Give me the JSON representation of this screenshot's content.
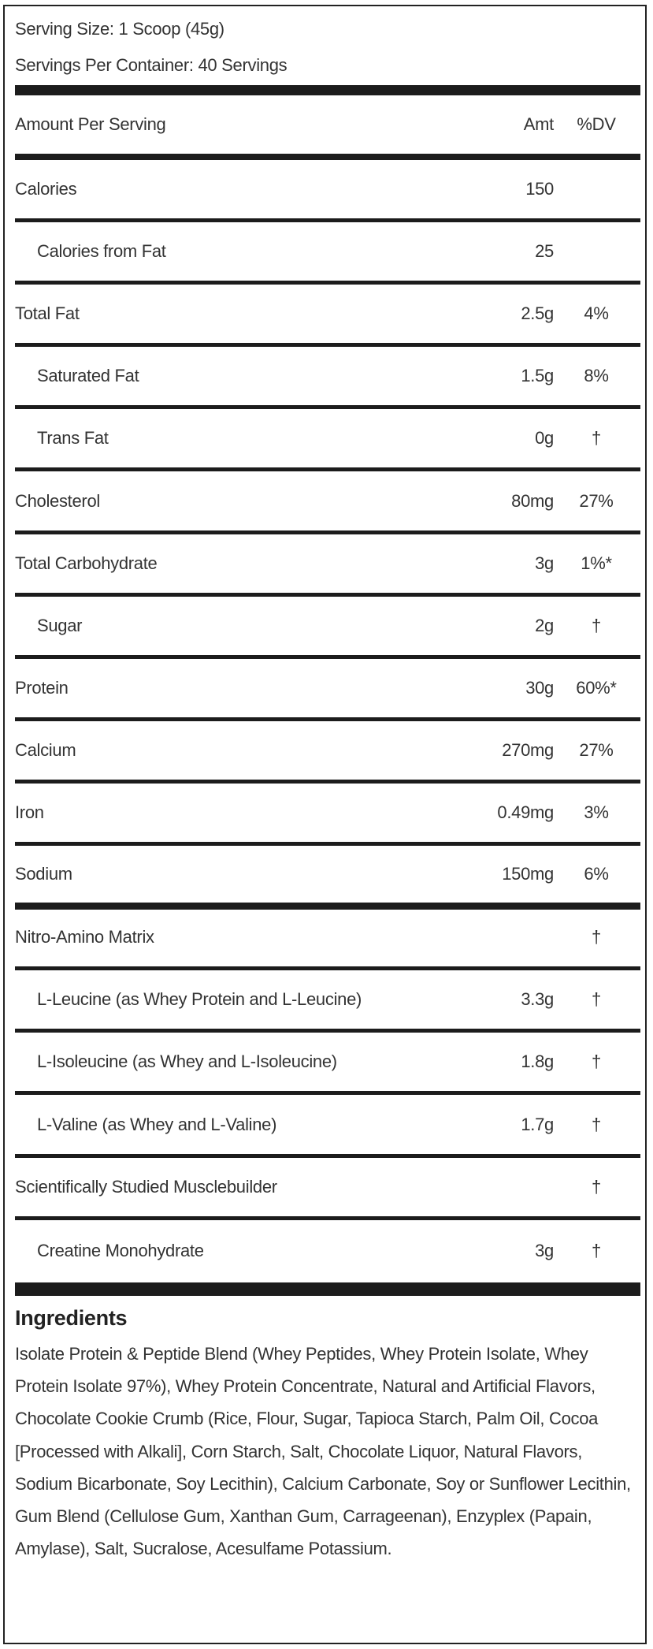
{
  "serving_size": "Serving Size: 1 Scoop (45g)",
  "servings_per_container": "Servings Per Container: 40 Servings",
  "header": {
    "label": "Amount Per Serving",
    "amt": "Amt",
    "dv": "%DV"
  },
  "rows": [
    {
      "label": "Calories",
      "amt": "150",
      "dv": ""
    },
    {
      "label": "Calories from Fat",
      "amt": "25",
      "dv": "",
      "indent": true
    },
    {
      "label": "Total Fat",
      "amt": "2.5g",
      "dv": "4%"
    },
    {
      "label": "Saturated Fat",
      "amt": "1.5g",
      "dv": "8%",
      "indent": true
    },
    {
      "label": "Trans Fat",
      "amt": "0g",
      "dv": "†",
      "indent": true
    },
    {
      "label": "Cholesterol",
      "amt": "80mg",
      "dv": "27%"
    },
    {
      "label": "Total Carbohydrate",
      "amt": "3g",
      "dv": "1%*"
    },
    {
      "label": "Sugar",
      "amt": "2g",
      "dv": "†",
      "indent": true
    },
    {
      "label": "Protein",
      "amt": "30g",
      "dv": "60%*"
    },
    {
      "label": "Calcium",
      "amt": "270mg",
      "dv": "27%"
    },
    {
      "label": "Iron",
      "amt": "0.49mg",
      "dv": "3%"
    },
    {
      "label": "Sodium",
      "amt": "150mg",
      "dv": "6%"
    },
    {
      "label": "Nitro-Amino Matrix",
      "amt": "",
      "dv": "†"
    },
    {
      "label": "L-Leucine (as Whey Protein and L-Leucine)",
      "amt": "3.3g",
      "dv": "†",
      "indent": true
    },
    {
      "label": "L-Isoleucine (as Whey and L-Isoleucine)",
      "amt": "1.8g",
      "dv": "†",
      "indent": true
    },
    {
      "label": "L-Valine (as Whey and L-Valine)",
      "amt": "1.7g",
      "dv": "†",
      "indent": true
    },
    {
      "label": "Scientifically Studied Musclebuilder",
      "amt": "",
      "dv": "†"
    },
    {
      "label": "Creatine Monohydrate",
      "amt": "3g",
      "dv": "†",
      "indent": true
    }
  ],
  "ingredients": {
    "title": "Ingredients",
    "text": "Isolate Protein & Peptide Blend (Whey Peptides, Whey Protein Isolate, Whey Protein Isolate 97%), Whey Protein Concentrate, Natural and Artificial Flavors, Chocolate Cookie Crumb (Rice, Flour, Sugar, Tapioca Starch, Palm Oil, Cocoa [Processed with Alkali], Corn Starch, Salt, Chocolate Liquor, Natural Flavors, Sodium Bicarbonate, Soy Lecithin), Calcium Carbonate, Soy or Sunflower Lecithin, Gum Blend (Cellulose Gum, Xanthan Gum, Carrageenan), Enzyplex (Papain, Amylase), Salt, Sucralose, Acesulfame Potassium."
  }
}
